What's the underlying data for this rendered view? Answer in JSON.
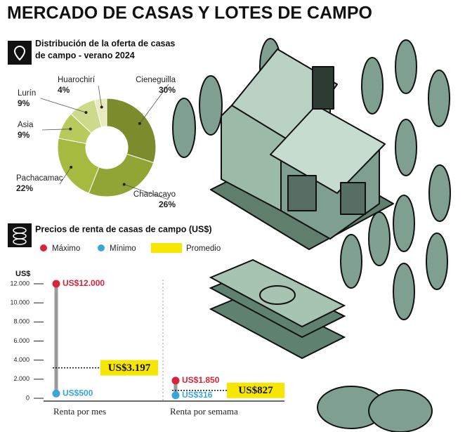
{
  "title": "MERCADO DE CASAS Y LOTES DE CAMPO",
  "chart_data": [
    {
      "type": "pie",
      "title": "Distribución de la oferta de casas de campo - verano 2024",
      "categories": [
        "Cieneguilla",
        "Chaclacayo",
        "Pachacamac",
        "Asia",
        "Lurín",
        "Huarochirí"
      ],
      "values": [
        30,
        26,
        22,
        9,
        9,
        4
      ],
      "value_labels": [
        "30%",
        "26%",
        "22%",
        "9%",
        "9%",
        "4%"
      ],
      "colors": [
        "#7c8b2c",
        "#90a534",
        "#a5ba3e",
        "#b9ca5c",
        "#cdd98b",
        "#e7ebbd"
      ]
    },
    {
      "type": "range",
      "title": "Precios de renta de casas de campo (US$)",
      "y_label": "US$",
      "categories": [
        "Renta por mes",
        "Renta por semama"
      ],
      "series": [
        {
          "name": "Máximo",
          "color": "#d8243a",
          "values": [
            12000,
            1850
          ],
          "value_labels": [
            "US$12.000",
            "US$1.850"
          ]
        },
        {
          "name": "Mínimo",
          "color": "#3ba4dd",
          "values": [
            500,
            316
          ],
          "value_labels": [
            "US$500",
            "US$316"
          ]
        },
        {
          "name": "Promedio",
          "color": "#f7e600",
          "values": [
            3197,
            827
          ],
          "value_labels": [
            "US$3.197",
            "US$827"
          ]
        }
      ],
      "ylim": [
        0,
        12000
      ],
      "yticks": [
        0,
        {
          "value": 2000,
          "label": "2.000"
        },
        {
          "value": 4000,
          "label": "4.000"
        },
        {
          "value": 6000,
          "label": "6.000"
        },
        {
          "value": 8000,
          "label": "8.000"
        },
        {
          "value": 10000,
          "label": "10.000"
        },
        {
          "value": 12000,
          "label": "12.000"
        }
      ]
    }
  ]
}
